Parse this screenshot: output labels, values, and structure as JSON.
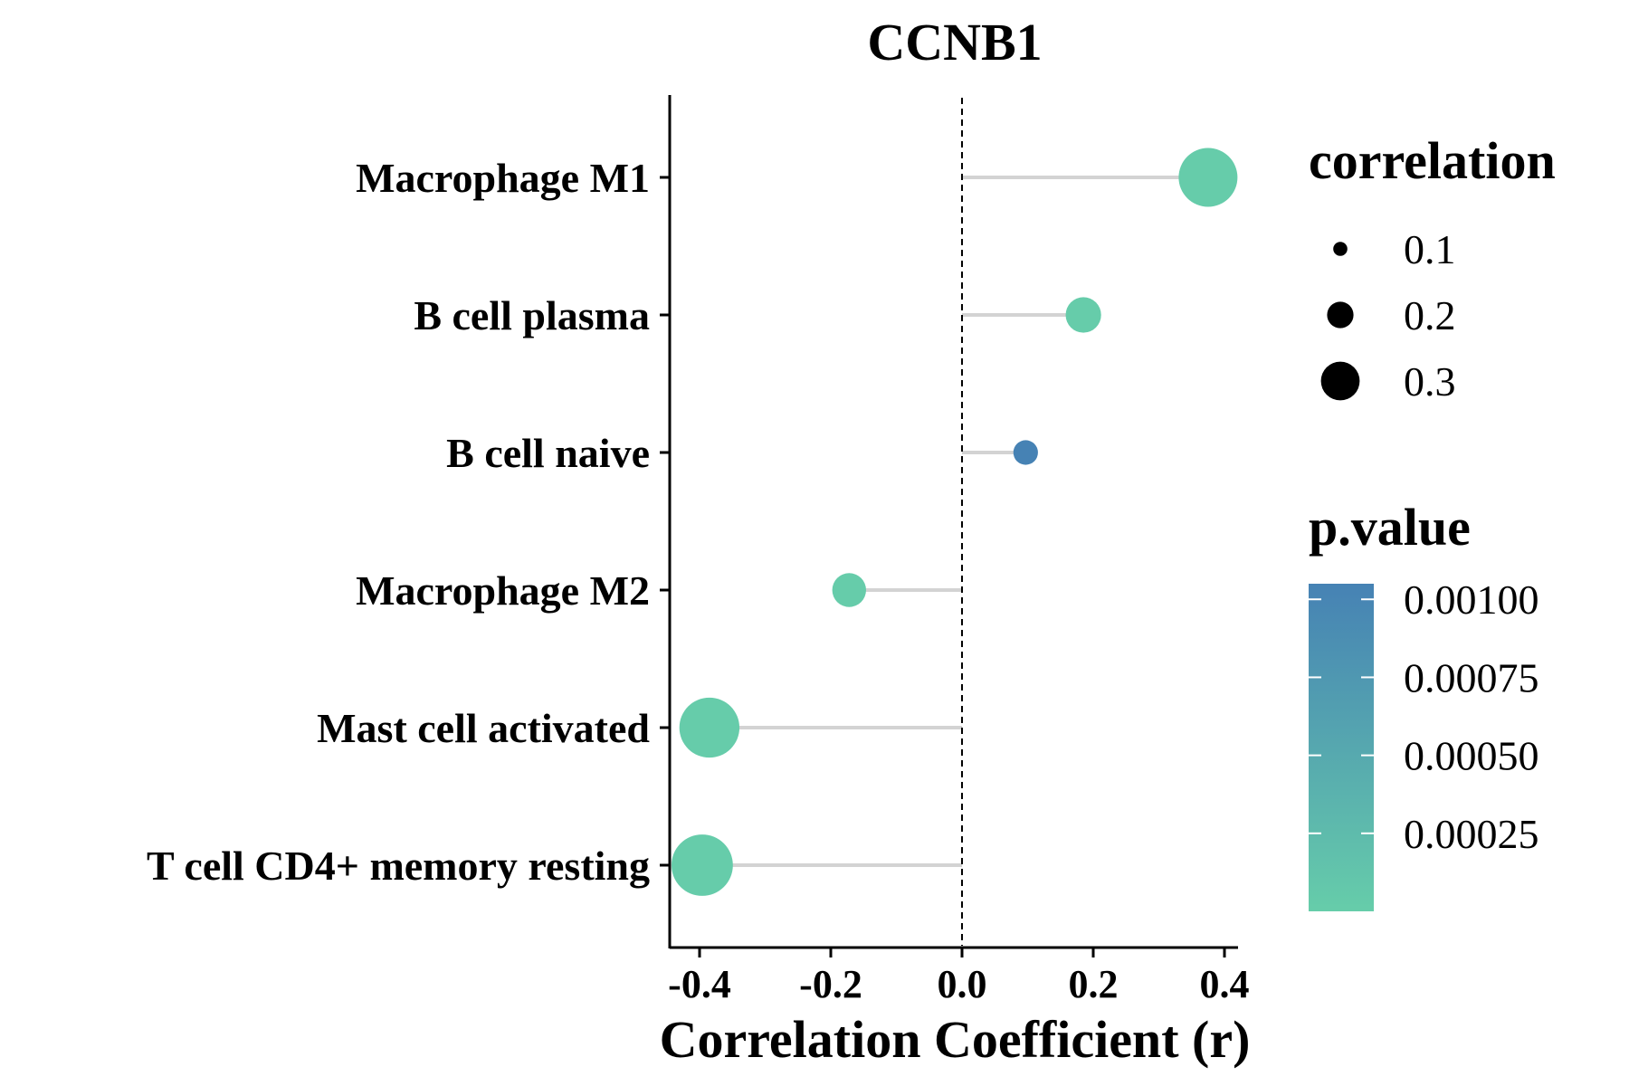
{
  "chart_data": {
    "type": "lollipop",
    "title": "CCNB1",
    "xlabel": "Correlation Coefficient (r)",
    "ylabel": "",
    "xlim": [
      -0.42,
      0.42
    ],
    "x_ticks": [
      "-0.4",
      "-0.2",
      "0.0",
      "0.2",
      "0.4"
    ],
    "x_tick_values": [
      -0.4,
      -0.2,
      0.0,
      0.2,
      0.4
    ],
    "reference_line": 0.0,
    "categories": [
      "Macrophage M1",
      "B cell plasma",
      "B cell naive",
      "Macrophage M2",
      "Mast cell activated",
      "T cell CD4+ memory resting"
    ],
    "values": [
      0.375,
      0.185,
      0.097,
      -0.172,
      -0.385,
      -0.396
    ],
    "p_values": [
      1e-05,
      1e-05,
      0.00105,
      1e-05,
      1e-05,
      1e-05
    ],
    "size_legend": {
      "title": "correlation",
      "labels": [
        "0.1",
        "0.2",
        "0.3"
      ],
      "values": [
        0.1,
        0.2,
        0.3
      ]
    },
    "color_legend": {
      "title": "p.value",
      "labels": [
        "0.00100",
        "0.00075",
        "0.00050",
        "0.00025"
      ],
      "values": [
        0.001,
        0.00075,
        0.0005,
        0.00025
      ],
      "range": [
        0.0,
        0.00105
      ],
      "low_color": "#66cdaa",
      "high_color": "#4682b4"
    },
    "segment_color": "#d3d3d3",
    "grid": false,
    "legend_position": "right"
  }
}
